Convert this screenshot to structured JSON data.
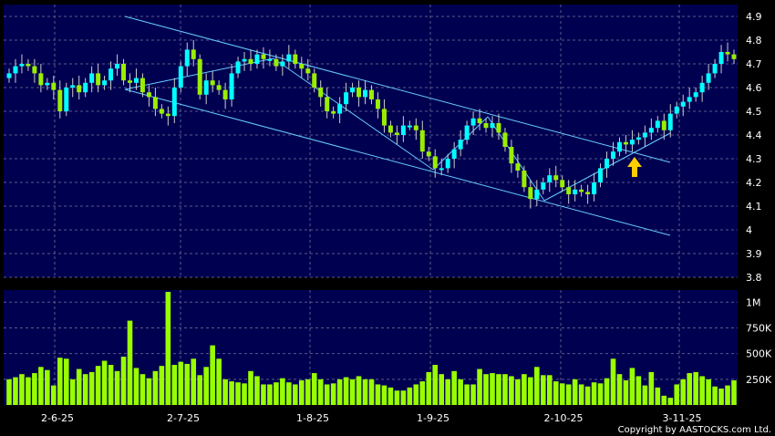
{
  "chart_data": [
    {
      "type": "candlestick",
      "x_tick_labels": [
        "2-6-25",
        "2-7-25",
        "1-8-25",
        "1-9-25",
        "2-10-25",
        "3-11-25"
      ],
      "y_tick_labels": [
        "3.8",
        "3.9",
        "4",
        "4.1",
        "4.2",
        "4.3",
        "4.4",
        "4.5",
        "4.6",
        "4.7",
        "4.8",
        "4.9"
      ],
      "ylim": [
        3.8,
        4.95
      ],
      "grid": true,
      "colors": {
        "background": "#000050",
        "up": "#00ffff",
        "down": "#99ee00",
        "trend": "#66ccff",
        "arrow": "#ffcc00"
      },
      "close": [
        4.66,
        4.69,
        4.7,
        4.69,
        4.66,
        4.61,
        4.62,
        4.59,
        4.5,
        4.6,
        4.61,
        4.58,
        4.62,
        4.66,
        4.61,
        4.63,
        4.68,
        4.7,
        4.63,
        4.62,
        4.64,
        4.58,
        4.56,
        4.51,
        4.49,
        4.48,
        4.6,
        4.69,
        4.76,
        4.72,
        4.57,
        4.63,
        4.61,
        4.59,
        4.55,
        4.66,
        4.71,
        4.72,
        4.7,
        4.74,
        4.72,
        4.72,
        4.69,
        4.71,
        4.74,
        4.7,
        4.68,
        4.66,
        4.6,
        4.56,
        4.5,
        4.49,
        4.53,
        4.58,
        4.6,
        4.56,
        4.59,
        4.55,
        4.51,
        4.44,
        4.41,
        4.4,
        4.44,
        4.44,
        4.42,
        4.33,
        4.31,
        4.26,
        4.26,
        4.3,
        4.34,
        4.38,
        4.44,
        4.47,
        4.45,
        4.43,
        4.45,
        4.41,
        4.35,
        4.28,
        4.25,
        4.18,
        4.13,
        4.17,
        4.2,
        4.23,
        4.21,
        4.18,
        4.15,
        4.17,
        4.16,
        4.15,
        4.2,
        4.26,
        4.3,
        4.33,
        4.37,
        4.36,
        4.38,
        4.39,
        4.41,
        4.43,
        4.46,
        4.42,
        4.49,
        4.52,
        4.54,
        4.56,
        4.58,
        4.62,
        4.66,
        4.7,
        4.75,
        4.74,
        4.72
      ],
      "volume_panel": {
        "type": "bar",
        "y_tick_labels": [
          "250K",
          "500K",
          "750K",
          "1M"
        ],
        "ylim": [
          0,
          1100000
        ],
        "values": [
          250000,
          270000,
          300000,
          270000,
          310000,
          370000,
          340000,
          190000,
          460000,
          450000,
          250000,
          350000,
          300000,
          320000,
          380000,
          430000,
          390000,
          330000,
          470000,
          820000,
          360000,
          300000,
          260000,
          330000,
          380000,
          1100000,
          390000,
          420000,
          400000,
          450000,
          290000,
          370000,
          580000,
          450000,
          250000,
          230000,
          220000,
          210000,
          330000,
          280000,
          200000,
          200000,
          220000,
          260000,
          220000,
          200000,
          240000,
          250000,
          310000,
          250000,
          200000,
          210000,
          250000,
          270000,
          250000,
          280000,
          250000,
          250000,
          200000,
          190000,
          170000,
          140000,
          140000,
          170000,
          200000,
          230000,
          320000,
          390000,
          300000,
          250000,
          330000,
          250000,
          200000,
          200000,
          350000,
          300000,
          310000,
          300000,
          300000,
          280000,
          250000,
          300000,
          270000,
          370000,
          290000,
          290000,
          230000,
          210000,
          200000,
          250000,
          200000,
          180000,
          220000,
          210000,
          260000,
          450000,
          300000,
          240000,
          360000,
          280000,
          190000,
          320000,
          170000,
          90000,
          70000,
          200000,
          250000,
          310000,
          320000,
          280000,
          250000,
          180000,
          160000,
          190000,
          240000
        ]
      }
    }
  ],
  "copyright": "Copyright by AASTOCKS.com Ltd."
}
